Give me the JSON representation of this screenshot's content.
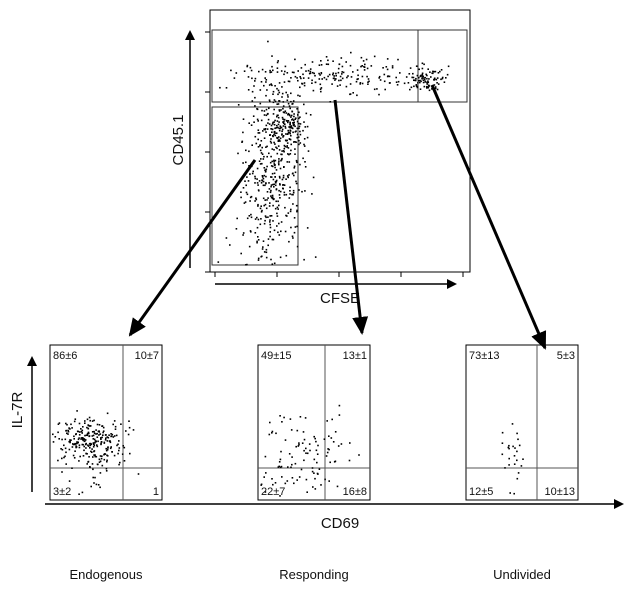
{
  "top_plot": {
    "y_label": "CD45.1",
    "x_label": "CFSE"
  },
  "panels": [
    {
      "quadrants": [
        "86±6",
        "10±7",
        "3±2",
        "1"
      ],
      "label": "Endogenous"
    },
    {
      "quadrants": [
        "49±15",
        "13±1",
        "22±7",
        "16±8"
      ],
      "label": "Responding"
    },
    {
      "quadrants": [
        "73±13",
        "5±3",
        "12±5",
        "10±13"
      ],
      "label": "Undivided"
    }
  ],
  "shared": {
    "y_label": "IL-7R",
    "x_label": "CD69"
  }
}
